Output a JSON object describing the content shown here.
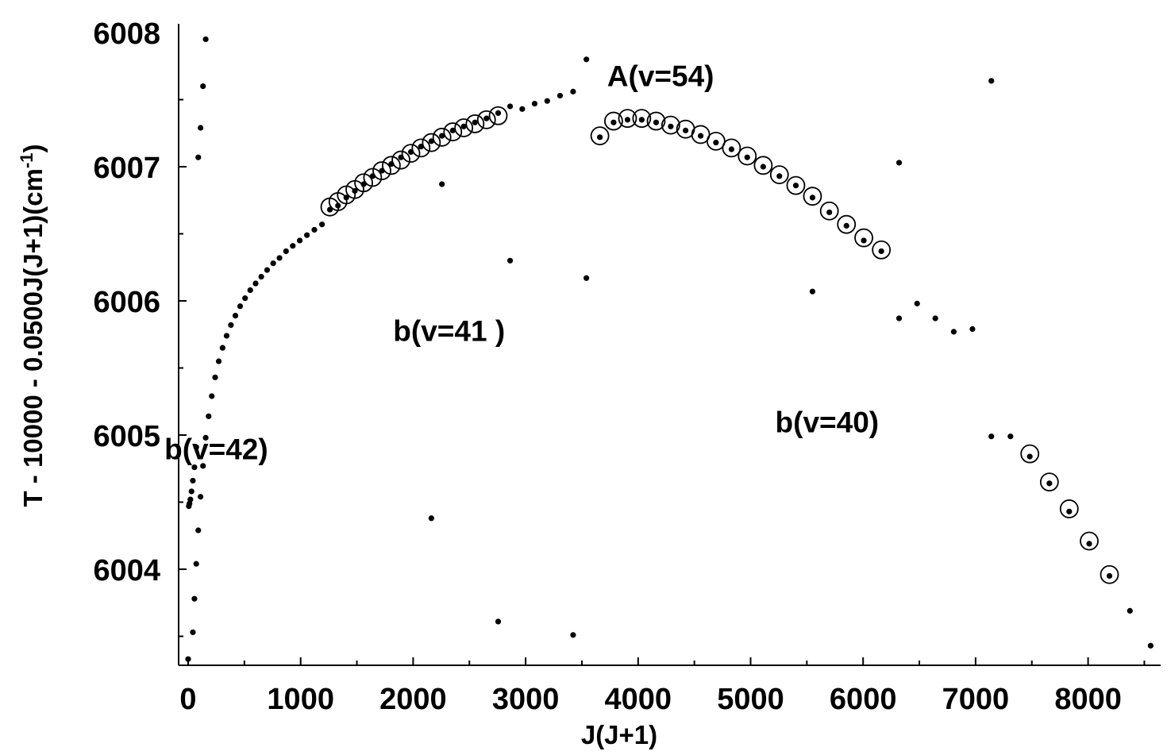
{
  "chart_data": {
    "type": "scatter",
    "title": "",
    "xlabel": "J(J+1)",
    "ylabel_main": "T - 10000 - 0.0500J(J+1)(cm",
    "ylabel_sup": "-1",
    "ylabel_close": ")",
    "xlim": [
      -100,
      8700
    ],
    "ylim": [
      6003.3,
      6008.1
    ],
    "x_ticks": [
      0,
      1000,
      2000,
      3000,
      4000,
      5000,
      6000,
      7000,
      8000
    ],
    "y_ticks": [
      6004,
      6005,
      6006,
      6007,
      6008
    ],
    "annotations": [
      {
        "text": "A(v=54)",
        "x": 4200,
        "y": 6007.6
      },
      {
        "text": "b(v=41 )",
        "x": 2320,
        "y": 6005.7
      },
      {
        "text": "b(v=42)",
        "x": 250,
        "y": 6004.82
      },
      {
        "text": "b(v=40)",
        "x": 5680,
        "y": 6005.02
      }
    ],
    "series": [
      {
        "marker": "dot",
        "points": [
          [
            0,
            6003.33
          ],
          [
            6,
            6004.47
          ],
          [
            12,
            6004.49
          ],
          [
            20,
            6004.52
          ],
          [
            30,
            6004.58
          ],
          [
            42,
            6004.66
          ],
          [
            56,
            6004.76
          ],
          [
            72,
            6004.91
          ],
          [
            90,
            6007.07
          ],
          [
            110,
            6007.29
          ],
          [
            132,
            6007.6
          ],
          [
            156,
            6007.95
          ],
          [
            42,
            6003.53
          ],
          [
            56,
            6003.78
          ],
          [
            72,
            6004.04
          ],
          [
            90,
            6004.29
          ],
          [
            110,
            6004.54
          ],
          [
            132,
            6004.77
          ],
          [
            156,
            6004.98
          ],
          [
            182,
            6005.14
          ],
          [
            210,
            6005.29
          ],
          [
            240,
            6005.43
          ],
          [
            272,
            6005.55
          ],
          [
            306,
            6005.65
          ],
          [
            342,
            6005.74
          ],
          [
            380,
            6005.82
          ],
          [
            420,
            6005.89
          ],
          [
            462,
            6005.96
          ],
          [
            506,
            6006.02
          ],
          [
            552,
            6006.08
          ],
          [
            600,
            6006.13
          ],
          [
            650,
            6006.18
          ],
          [
            702,
            6006.23
          ],
          [
            756,
            6006.28
          ],
          [
            812,
            6006.32
          ],
          [
            870,
            6006.37
          ],
          [
            930,
            6006.41
          ],
          [
            992,
            6006.45
          ],
          [
            1056,
            6006.49
          ],
          [
            1122,
            6006.53
          ],
          [
            1190,
            6006.57
          ],
          [
            1260,
            6006.68
          ],
          [
            1332,
            6006.71
          ],
          [
            1406,
            6006.77
          ],
          [
            1482,
            6006.82
          ],
          [
            1560,
            6006.87
          ],
          [
            1640,
            6006.93
          ],
          [
            1722,
            6006.97
          ],
          [
            1806,
            6007.02
          ],
          [
            1892,
            6007.07
          ],
          [
            1980,
            6007.11
          ],
          [
            2070,
            6007.15
          ],
          [
            2162,
            6007.19
          ],
          [
            2256,
            6007.23
          ],
          [
            2352,
            6007.27
          ],
          [
            2450,
            6007.3
          ],
          [
            2550,
            6007.33
          ],
          [
            2652,
            6007.36
          ],
          [
            2756,
            6007.4
          ],
          [
            2862,
            6007.45
          ],
          [
            2970,
            6007.43
          ],
          [
            3080,
            6007.47
          ],
          [
            3192,
            6007.49
          ],
          [
            3306,
            6007.53
          ],
          [
            3422,
            6007.56
          ],
          [
            3660,
            6007.22
          ],
          [
            3782,
            6007.33
          ],
          [
            3906,
            6007.35
          ],
          [
            4032,
            6007.35
          ],
          [
            4160,
            6007.33
          ],
          [
            4290,
            6007.3
          ],
          [
            4422,
            6007.27
          ],
          [
            4556,
            6007.23
          ],
          [
            4692,
            6007.18
          ],
          [
            4830,
            6007.13
          ],
          [
            4970,
            6007.07
          ],
          [
            5112,
            6007.0
          ],
          [
            5256,
            6006.93
          ],
          [
            5402,
            6006.86
          ],
          [
            5550,
            6006.77
          ],
          [
            5700,
            6006.66
          ],
          [
            5852,
            6006.56
          ],
          [
            6006,
            6006.45
          ],
          [
            6162,
            6006.37
          ],
          [
            2256,
            6006.87
          ],
          [
            2862,
            6006.3
          ],
          [
            3540,
            6006.17
          ],
          [
            3540,
            6007.8
          ],
          [
            2162,
            6004.38
          ],
          [
            2756,
            6003.61
          ],
          [
            3422,
            6003.51
          ],
          [
            5550,
            6006.07
          ],
          [
            6320,
            6007.03
          ],
          [
            6320,
            6005.87
          ],
          [
            6480,
            6005.98
          ],
          [
            6642,
            6005.87
          ],
          [
            6806,
            6005.77
          ],
          [
            6972,
            6005.79
          ],
          [
            7140,
            6007.64
          ],
          [
            7140,
            6004.99
          ],
          [
            7310,
            6004.99
          ],
          [
            7482,
            6004.84
          ],
          [
            7656,
            6004.64
          ],
          [
            7832,
            6004.43
          ],
          [
            8010,
            6004.19
          ],
          [
            8190,
            6003.95
          ],
          [
            8372,
            6003.69
          ],
          [
            8556,
            6003.43
          ]
        ]
      },
      {
        "marker": "open-circle",
        "points": [
          [
            1260,
            6006.7
          ],
          [
            1332,
            6006.74
          ],
          [
            1406,
            6006.79
          ],
          [
            1482,
            6006.83
          ],
          [
            1560,
            6006.88
          ],
          [
            1640,
            6006.92
          ],
          [
            1722,
            6006.97
          ],
          [
            1806,
            6007.01
          ],
          [
            1892,
            6007.05
          ],
          [
            1980,
            6007.1
          ],
          [
            2070,
            6007.14
          ],
          [
            2162,
            6007.18
          ],
          [
            2256,
            6007.22
          ],
          [
            2352,
            6007.26
          ],
          [
            2450,
            6007.29
          ],
          [
            2550,
            6007.32
          ],
          [
            2652,
            6007.35
          ],
          [
            2756,
            6007.38
          ],
          [
            3660,
            6007.23
          ],
          [
            3782,
            6007.34
          ],
          [
            3906,
            6007.36
          ],
          [
            4032,
            6007.36
          ],
          [
            4160,
            6007.34
          ],
          [
            4290,
            6007.31
          ],
          [
            4422,
            6007.28
          ],
          [
            4556,
            6007.24
          ],
          [
            4692,
            6007.19
          ],
          [
            4830,
            6007.14
          ],
          [
            4970,
            6007.08
          ],
          [
            5112,
            6007.01
          ],
          [
            5256,
            6006.94
          ],
          [
            5402,
            6006.86
          ],
          [
            5550,
            6006.78
          ],
          [
            5700,
            6006.67
          ],
          [
            5852,
            6006.57
          ],
          [
            6006,
            6006.47
          ],
          [
            6162,
            6006.38
          ],
          [
            7482,
            6004.86
          ],
          [
            7656,
            6004.65
          ],
          [
            7832,
            6004.45
          ],
          [
            8010,
            6004.21
          ],
          [
            8190,
            6003.96
          ]
        ]
      }
    ]
  }
}
